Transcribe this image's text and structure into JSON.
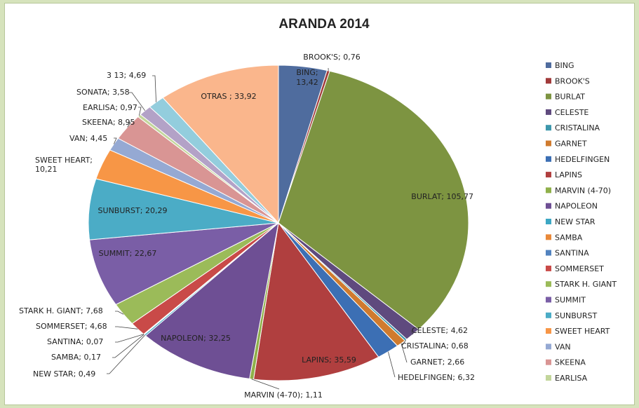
{
  "chart_data": {
    "type": "pie",
    "title": "ARANDA 2014",
    "slices": [
      {
        "name": "BING",
        "value": 13.42,
        "label": "BING; 13,42",
        "color": "#4f6c9e"
      },
      {
        "name": "BROOK'S",
        "value": 0.76,
        "label": "BROOK'S; 0,76",
        "color": "#a13a3a"
      },
      {
        "name": "BURLAT",
        "value": 105.77,
        "label": "BURLAT; 105,77",
        "color": "#7d9441"
      },
      {
        "name": "CELESTE",
        "value": 4.62,
        "label": "CELESTE; 4,62",
        "color": "#5f4a7e"
      },
      {
        "name": "CRISTALINA",
        "value": 0.68,
        "label": "CRISTALINA; 0,68",
        "color": "#3d97ac"
      },
      {
        "name": "GARNET",
        "value": 2.66,
        "label": "GARNET; 2,66",
        "color": "#d07b2e"
      },
      {
        "name": "HEDELFINGEN",
        "value": 6.32,
        "label": "HEDELFINGEN; 6,32",
        "color": "#3c6fb4"
      },
      {
        "name": "LAPINS",
        "value": 35.59,
        "label": "LAPINS; 35,59",
        "color": "#b03f3f"
      },
      {
        "name": "MARVIN (4-70)",
        "value": 1.11,
        "label": "MARVIN (4-70); 1,11",
        "color": "#8fb04a"
      },
      {
        "name": "NAPOLEON",
        "value": 32.25,
        "label": "NAPOLEON; 32,25",
        "color": "#6e4f94"
      },
      {
        "name": "NEW STAR",
        "value": 0.49,
        "label": "NEW STAR; 0,49",
        "color": "#3ca7c4"
      },
      {
        "name": "SAMBA",
        "value": 0.17,
        "label": "SAMBA; 0,17",
        "color": "#e9893a"
      },
      {
        "name": "SANTINA",
        "value": 0.07,
        "label": "SANTINA; 0,07",
        "color": "#5283bf"
      },
      {
        "name": "SOMMERSET",
        "value": 4.68,
        "label": "SOMMERSET; 4,68",
        "color": "#c94a48"
      },
      {
        "name": "STARK H. GIANT",
        "value": 7.68,
        "label": "STARK H. GIANT; 7,68",
        "color": "#9bbb59"
      },
      {
        "name": "SUMMIT",
        "value": 22.67,
        "label": "SUMMIT; 22,67",
        "color": "#7a5ea6"
      },
      {
        "name": "SUNBURST",
        "value": 20.29,
        "label": "SUNBURST; 20,29",
        "color": "#4bacc6"
      },
      {
        "name": "SWEET HEART",
        "value": 10.21,
        "label": "SWEET HEART;\n10,21",
        "color": "#f79646"
      },
      {
        "name": "VAN",
        "value": 4.45,
        "label": "VAN; 4,45",
        "color": "#95a9d3"
      },
      {
        "name": "SKEENA",
        "value": 8.95,
        "label": "SKEENA; 8,95",
        "color": "#d99594"
      },
      {
        "name": "EARLISA",
        "value": 0.97,
        "label": "EARLISA; 0,97",
        "color": "#c3d69b"
      },
      {
        "name": "SONATA",
        "value": 3.58,
        "label": "SONATA; 3,58",
        "color": "#b3a2c7"
      },
      {
        "name": "3 13",
        "value": 4.69,
        "label": "3 13; 4,69",
        "color": "#93cddd"
      },
      {
        "name": "OTRAS",
        "value": 33.92,
        "label": "OTRAS ; 33,92",
        "color": "#fab68c"
      }
    ],
    "legend": {
      "placement": "right",
      "entries": [
        "BING",
        "BROOK'S",
        "BURLAT",
        "CELESTE",
        "CRISTALINA",
        "GARNET",
        "HEDELFINGEN",
        "LAPINS",
        "MARVIN (4-70)",
        "NAPOLEON",
        "NEW STAR",
        "SAMBA",
        "SANTINA",
        "SOMMERSET",
        "STARK H. GIANT",
        "SUMMIT",
        "SUNBURST",
        "SWEET HEART",
        "VAN",
        "SKEENA",
        "EARLISA"
      ]
    }
  }
}
